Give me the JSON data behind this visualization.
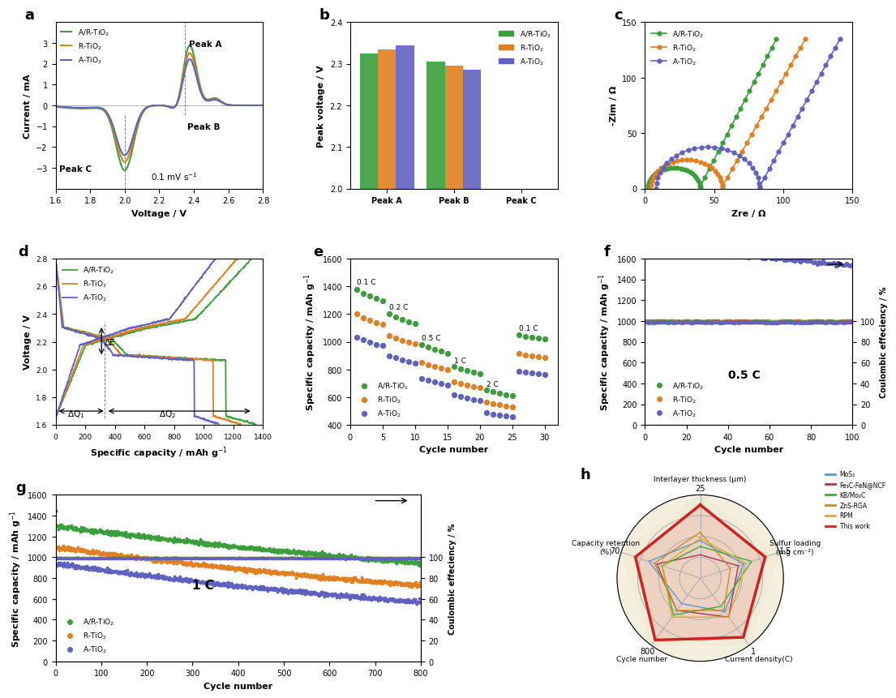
{
  "colors": {
    "AR": "#3a9e3a",
    "R": "#e08020",
    "A": "#6060c0"
  },
  "panel_b": {
    "categories": [
      "Peak A",
      "Peak B",
      "Peak C"
    ],
    "AR_values": [
      2.325,
      2.305,
      2.0
    ],
    "R_values": [
      2.335,
      2.295,
      1.985
    ],
    "A_values": [
      2.345,
      2.285,
      1.975
    ]
  },
  "panel_h": {
    "legend_colors": [
      "#5599cc",
      "#aa3366",
      "#44aa44",
      "#cc8833",
      "#ddaa22",
      "#cc2222"
    ],
    "legend_labels": [
      "MoS₂",
      "Fe₃C-FeN@NCF",
      "KB/Mo₂C",
      "ZnS-RGA",
      "RPM",
      "This work"
    ],
    "radar_data": {
      "MoS₂": [
        0.45,
        0.55,
        0.5,
        0.38,
        0.65
      ],
      "Fe₃C-FeN@NCF": [
        0.28,
        0.48,
        0.58,
        0.48,
        0.55
      ],
      "KB/Mo₂C": [
        0.38,
        0.65,
        0.42,
        0.55,
        0.48
      ],
      "ZnS-RGA": [
        0.55,
        0.38,
        0.48,
        0.48,
        0.58
      ],
      "RPM": [
        0.48,
        0.58,
        0.58,
        0.58,
        0.48
      ],
      "This work": [
        0.88,
        0.82,
        0.88,
        0.92,
        0.82
      ]
    },
    "axis_labels": [
      "Interlayer thickness (μm)",
      "Sulfur loading\n(mg cm⁻²)",
      "Current density(C)",
      "Cycle number",
      "Capacity retention\n(%)"
    ],
    "axis_max_labels": [
      "25",
      "1.5",
      "1",
      "800",
      "70"
    ]
  }
}
